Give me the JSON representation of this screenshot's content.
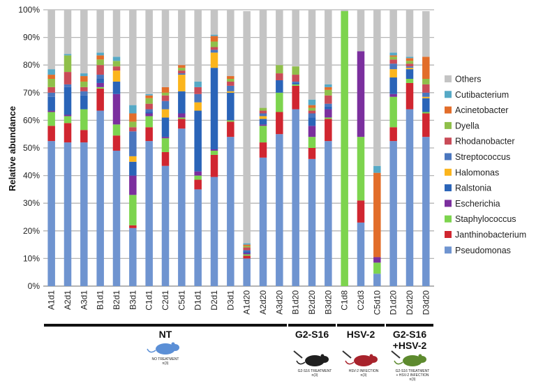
{
  "chart_data": {
    "type": "bar",
    "stacked": true,
    "ylabel": "Relative abundance",
    "ylim": [
      0,
      100
    ],
    "y_ticks": [
      "0%",
      "10%",
      "20%",
      "30%",
      "40%",
      "50%",
      "60%",
      "70%",
      "80%",
      "90%",
      "100%"
    ],
    "grid": "horizontal",
    "legend_position": "right",
    "categories": [
      "A1d1",
      "A2d1",
      "A3d1",
      "B1d1",
      "B2d1",
      "B3d1",
      "C1d1",
      "C2d1",
      "C5d1",
      "D1d1",
      "D2d1",
      "D3d1",
      "A1d20",
      "A2d20",
      "A3d20",
      "B1d20",
      "B2d20",
      "B3d20",
      "C1d8",
      "C2d3",
      "C5d10",
      "D1d20",
      "D2d20",
      "D3d20"
    ],
    "series": [
      {
        "name": "Pseudomonas",
        "color": "#6f94d0",
        "values": [
          52.5,
          52,
          52,
          63.5,
          49,
          21,
          52.5,
          43.5,
          57,
          35,
          39.5,
          54,
          10,
          46.5,
          55,
          64,
          46,
          52.5,
          0,
          23,
          4.5,
          52.5,
          64,
          54
        ]
      },
      {
        "name": "Janthinobacterium",
        "color": "#d02630",
        "values": [
          5.5,
          7,
          4.5,
          8,
          5.5,
          1,
          5,
          5,
          3.5,
          3.5,
          8,
          5.5,
          1,
          5.5,
          8,
          8.5,
          4,
          8,
          0,
          8,
          0,
          5,
          9.5,
          8.5
        ]
      },
      {
        "name": "Staphylococcus",
        "color": "#7dd44e",
        "values": [
          5,
          2.5,
          7.5,
          0.5,
          4,
          11,
          4,
          5,
          0.5,
          1.5,
          1.5,
          0.5,
          0.5,
          6,
          7,
          0.5,
          4,
          0.5,
          99.5,
          23,
          4,
          11,
          1.5,
          0.5
        ]
      },
      {
        "name": "Escherichia",
        "color": "#7b2f9e",
        "values": [
          0.5,
          0.5,
          0,
          1.5,
          11,
          7,
          1,
          0.5,
          1.5,
          1.5,
          0.5,
          0,
          0.5,
          0.5,
          0,
          0,
          4,
          3,
          0,
          31,
          2,
          1,
          0,
          0
        ]
      },
      {
        "name": "Ralstonia",
        "color": "#2a64b8",
        "values": [
          5,
          10,
          5,
          1.5,
          4.5,
          5,
          0.5,
          7,
          8,
          22,
          29.5,
          10,
          0.5,
          2,
          4.5,
          0.5,
          3,
          1,
          0,
          0,
          0,
          6,
          3.5,
          5
        ]
      },
      {
        "name": "Halomonas",
        "color": "#fbb51d",
        "values": [
          0,
          0,
          0,
          0,
          4,
          2,
          0,
          3,
          6,
          3,
          5.5,
          0.5,
          0,
          1,
          0,
          0,
          0,
          0,
          0,
          0,
          0,
          3,
          0.5,
          0.5
        ]
      },
      {
        "name": "Streptococcus",
        "color": "#4a76be",
        "values": [
          1.5,
          1,
          1.5,
          1.5,
          0,
          9,
          1,
          3,
          0.5,
          3,
          1,
          2,
          0.5,
          1,
          0,
          0.5,
          1.5,
          1,
          0,
          0,
          0,
          2,
          0.5,
          1.5
        ]
      },
      {
        "name": "Rhodanobacter",
        "color": "#c94b58",
        "values": [
          2,
          4.5,
          1.5,
          3.5,
          1.5,
          1.5,
          2,
          2,
          1,
          2.5,
          1,
          1.5,
          1,
          1,
          2.5,
          2.5,
          1,
          3,
          0,
          0,
          0,
          1.5,
          1,
          3
        ]
      },
      {
        "name": "Dyella",
        "color": "#8fbf4a",
        "values": [
          3,
          6,
          2,
          2,
          2,
          2,
          2,
          1,
          1,
          0,
          2,
          1,
          0.5,
          1,
          3,
          3,
          1,
          2,
          0,
          0,
          0,
          1,
          1,
          2
        ]
      },
      {
        "name": "Acinetobacter",
        "color": "#e26d2a",
        "values": [
          1.5,
          0,
          2,
          1.5,
          0,
          3,
          1,
          2,
          1,
          0,
          2,
          1,
          0.5,
          0,
          0,
          0,
          1,
          1,
          0,
          0,
          30.5,
          0.5,
          1,
          8
        ]
      },
      {
        "name": "Cutibacterium",
        "color": "#56a9c6",
        "values": [
          2,
          0.5,
          1,
          1,
          1.5,
          3,
          0.5,
          0,
          0,
          2,
          0.5,
          0,
          0.5,
          0,
          0,
          0,
          2,
          1,
          0,
          0,
          2.5,
          1,
          0.5,
          0
        ]
      },
      {
        "name": "Others",
        "color": "#c4c4c4",
        "values": [
          21.5,
          16,
          23,
          15.5,
          17,
          34.5,
          30.5,
          28,
          20,
          26,
          9,
          24,
          84,
          35.5,
          20,
          20.5,
          32.5,
          27,
          0.5,
          15,
          56.5,
          15.5,
          17,
          16.5
        ]
      }
    ],
    "groups": [
      {
        "label": "NT",
        "caption": [
          "NO TREATMENT",
          "n(3)"
        ]
      },
      {
        "label": "G2-S16",
        "caption": [
          "G2-S16 TREATMENT",
          "n(3)"
        ]
      },
      {
        "label": "HSV-2",
        "caption": [
          "HSV-2 INFECTION",
          "n(3)"
        ]
      },
      {
        "label": "G2-S16 +HSV-2",
        "caption": [
          "G2-S16 TREATMENT",
          "+ HSV-2 INFECTION",
          "n(3)"
        ]
      }
    ]
  }
}
